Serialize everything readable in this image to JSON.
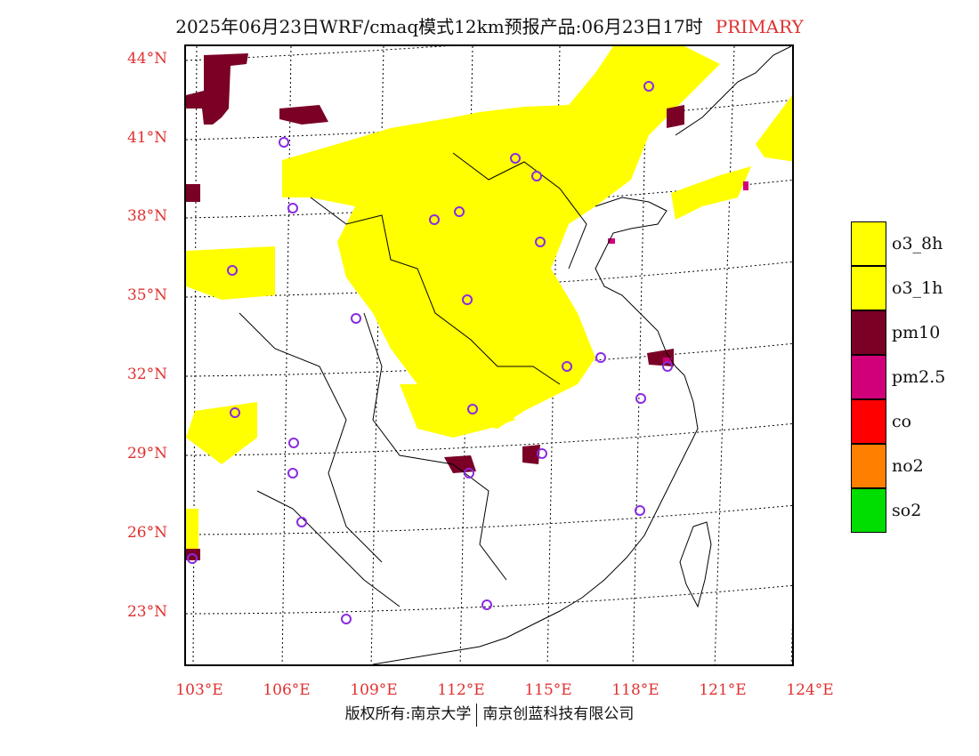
{
  "title": {
    "main": "2025年06月23日WRF/cmaq模式12km预报产品:06月23日17时",
    "tag": "PRIMARY"
  },
  "map": {
    "lat_labels": [
      "44°N",
      "41°N",
      "38°N",
      "35°N",
      "32°N",
      "29°N",
      "26°N",
      "23°N"
    ],
    "lon_labels": [
      "103°E",
      "106°E",
      "109°E",
      "112°E",
      "115°E",
      "118°E",
      "121°E",
      "124°E"
    ],
    "cities": [
      {
        "name": "c1"
      },
      {
        "name": "c2"
      },
      {
        "name": "c3"
      }
    ]
  },
  "legend": {
    "items": [
      {
        "label": "o3_8h",
        "color": "#ffff00"
      },
      {
        "label": "o3_1h",
        "color": "#ffff00"
      },
      {
        "label": "pm10",
        "color": "#7a0026"
      },
      {
        "label": "pm2.5",
        "color": "#d1007a"
      },
      {
        "label": "co",
        "color": "#ff0000"
      },
      {
        "label": "no2",
        "color": "#ff7f00"
      },
      {
        "label": "so2",
        "color": "#00dd00"
      }
    ]
  },
  "colors": {
    "o3": "#ffff00",
    "pm10": "#7a0026",
    "pm25": "#d1007a",
    "marker": "#8a2be2",
    "label": "#e03030"
  },
  "footer": {
    "left": "版权所有:南京大学",
    "right": "南京创蓝科技有限公司"
  }
}
